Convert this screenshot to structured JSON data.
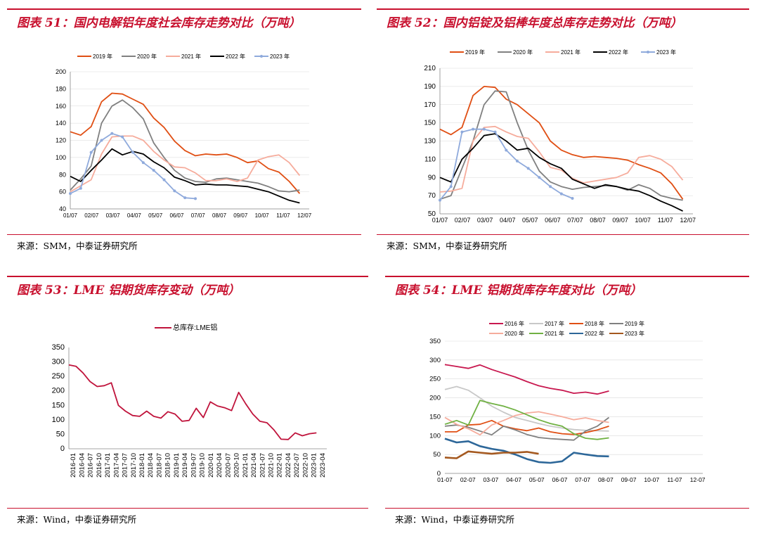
{
  "colors": {
    "accent": "#c8102e",
    "y2016": "#c8184f",
    "y2017": "#c8c8c8",
    "y2018": "#e04f14",
    "y2019": "#808080",
    "y2020": "#f6ac9c",
    "y2021": "#70b143",
    "y2022": "#2d6799",
    "y2022_black": "#000000",
    "y2023": "#8faadc",
    "y2023_brown": "#a4581e",
    "lme": "#c0143c"
  },
  "panels": [
    {
      "title": "图表 51：国内电解铝年度社会库存走势对比（万吨）",
      "source": "来源：SMM，中泰证券研究所"
    },
    {
      "title": "图表 52：国内铝锭及铝棒年度总库存走势对比（万吨）",
      "source": "来源：SMM，中泰证券研究所"
    },
    {
      "title": "图表 53：LME 铝期货库存变动（万吨）",
      "source": "来源：Wind，中泰证券研究所"
    },
    {
      "title": "图表 54：LME 铝期货库存年度对比（万吨）",
      "source": "来源：Wind，中泰证券研究所"
    }
  ],
  "chart_data": [
    {
      "type": "line",
      "ylim": [
        40,
        200
      ],
      "yticks": [
        "40",
        "60",
        "80",
        "100",
        "120",
        "140",
        "160",
        "180",
        "200"
      ],
      "xticks": [
        "01/07",
        "02/07",
        "03/07",
        "04/07",
        "05/07",
        "06/07",
        "07/07",
        "08/07",
        "09/07",
        "10/07",
        "11/07",
        "12/07"
      ],
      "legend": [
        "2019 年",
        "2020 年",
        "2021 年",
        "2022 年",
        "2023 年"
      ],
      "series": [
        {
          "name": "2019 年",
          "color": "#e04f14",
          "values": [
            130,
            126,
            136,
            165,
            175,
            174,
            168,
            162,
            146,
            135,
            119,
            108,
            102,
            104,
            103,
            104,
            100,
            94,
            96,
            87,
            83,
            72,
            58
          ]
        },
        {
          "name": "2020 年",
          "color": "#808080",
          "values": [
            62,
            75,
            90,
            140,
            160,
            167,
            158,
            145,
            117,
            100,
            85,
            76,
            72,
            71,
            75,
            76,
            74,
            72,
            70,
            66,
            61,
            60,
            62
          ]
        },
        {
          "name": "2021 年",
          "color": "#f6ac9c",
          "values": [
            60,
            67,
            74,
            104,
            124,
            125,
            125,
            120,
            107,
            97,
            89,
            88,
            82,
            73,
            73,
            75,
            72,
            76,
            97,
            101,
            103,
            94,
            79
          ]
        },
        {
          "name": "2022 年",
          "color": "#000000",
          "values": [
            78,
            72,
            85,
            97,
            110,
            103,
            107,
            104,
            95,
            88,
            77,
            73,
            68,
            69,
            68,
            68,
            67,
            66,
            63,
            60,
            55,
            50,
            47
          ]
        },
        {
          "name": "2023 年",
          "color": "#8faadc",
          "values": [
            58,
            64,
            106,
            120,
            128,
            124,
            106,
            94,
            85,
            74,
            61,
            53,
            52
          ]
        }
      ]
    },
    {
      "type": "line",
      "ylim": [
        50,
        210
      ],
      "yticks": [
        "50",
        "70",
        "90",
        "110",
        "130",
        "150",
        "170",
        "190",
        "210"
      ],
      "xticks": [
        "01/07",
        "02/07",
        "03/07",
        "04/07",
        "05/07",
        "06/07",
        "07/07",
        "08/07",
        "09/07",
        "10/07",
        "11/07",
        "12/07"
      ],
      "legend": [
        "2019 年",
        "2020 年",
        "2021 年",
        "2022 年",
        "2023 年"
      ],
      "series": [
        {
          "name": "2019 年",
          "color": "#e04f14",
          "values": [
            143,
            137,
            145,
            180,
            190,
            189,
            176,
            170,
            160,
            150,
            130,
            120,
            115,
            112,
            113,
            112,
            111,
            109,
            104,
            100,
            95,
            83,
            66
          ]
        },
        {
          "name": "2020 年",
          "color": "#808080",
          "values": [
            66,
            70,
            100,
            130,
            170,
            185,
            184,
            150,
            120,
            97,
            85,
            80,
            77,
            79,
            80,
            81,
            80,
            76,
            82,
            78,
            70,
            67,
            65
          ]
        },
        {
          "name": "2021 年",
          "color": "#f6ac9c",
          "values": [
            74,
            75,
            78,
            130,
            145,
            146,
            140,
            135,
            133,
            118,
            101,
            98,
            89,
            84,
            86,
            88,
            90,
            95,
            112,
            114,
            110,
            102,
            87
          ]
        },
        {
          "name": "2022 年",
          "color": "#000000",
          "values": [
            90,
            85,
            110,
            122,
            136,
            138,
            130,
            120,
            122,
            112,
            105,
            100,
            88,
            83,
            78,
            82,
            80,
            77,
            75,
            70,
            64,
            59,
            53
          ]
        },
        {
          "name": "2023 年",
          "color": "#8faadc",
          "values": [
            65,
            80,
            140,
            143,
            143,
            140,
            120,
            108,
            100,
            90,
            80,
            72,
            67
          ]
        }
      ]
    },
    {
      "type": "line",
      "ylim": [
        0,
        350
      ],
      "yticks": [
        "0",
        "50",
        "100",
        "150",
        "200",
        "250",
        "300",
        "350"
      ],
      "xticks": [
        "2016-01",
        "2016-04",
        "2016-07",
        "2016-10",
        "2017-01",
        "2017-04",
        "2017-07",
        "2017-10",
        "2018-01",
        "2018-04",
        "2018-07",
        "2018-10",
        "2019-01",
        "2019-04",
        "2019-07",
        "2019-10",
        "2020-01",
        "2020-04",
        "2020-07",
        "2020-10",
        "2021-01",
        "2021-04",
        "2021-07",
        "2021-10",
        "2022-01",
        "2022-04",
        "2022-07",
        "2022-10",
        "2023-01",
        "2023-04"
      ],
      "legend": [
        "总库存:LME铝"
      ],
      "series": [
        {
          "name": "总库存:LME铝",
          "color": "#c0143c",
          "values": [
            290,
            285,
            262,
            232,
            215,
            218,
            228,
            150,
            130,
            115,
            112,
            130,
            112,
            106,
            128,
            120,
            95,
            98,
            140,
            108,
            162,
            148,
            142,
            132,
            195,
            155,
            120,
            95,
            90,
            65,
            33,
            32,
            55,
            45,
            52,
            55
          ]
        }
      ]
    },
    {
      "type": "line",
      "ylim": [
        0,
        350
      ],
      "yticks": [
        "0",
        "50",
        "100",
        "150",
        "200",
        "250",
        "300",
        "350"
      ],
      "xticks": [
        "01-07",
        "02-07",
        "03-07",
        "04-07",
        "05-07",
        "06-07",
        "07-07",
        "08-07",
        "09-07",
        "10-07",
        "11-07",
        "12-07"
      ],
      "legend": [
        "2016 年",
        "2017 年",
        "2018 年",
        "2019 年",
        "2020 年",
        "2021 年",
        "2022 年",
        "2023 年"
      ],
      "series": [
        {
          "name": "2016 年",
          "color": "#c8184f",
          "values": [
            288,
            283,
            278,
            287,
            275,
            265,
            255,
            243,
            232,
            225,
            220,
            212,
            215,
            210,
            218
          ]
        },
        {
          "name": "2017 年",
          "color": "#c8c8c8",
          "values": [
            222,
            230,
            220,
            200,
            178,
            162,
            148,
            140,
            132,
            125,
            120,
            116,
            114,
            113,
            112
          ]
        },
        {
          "name": "2018 年",
          "color": "#e04f14",
          "values": [
            110,
            110,
            128,
            130,
            140,
            125,
            118,
            113,
            120,
            110,
            105,
            103,
            108,
            115,
            125
          ]
        },
        {
          "name": "2019 年",
          "color": "#808080",
          "values": [
            125,
            128,
            122,
            112,
            102,
            125,
            115,
            103,
            95,
            92,
            90,
            88,
            112,
            125,
            148
          ]
        },
        {
          "name": "2020 年",
          "color": "#f6ac9c",
          "values": [
            148,
            130,
            118,
            102,
            128,
            140,
            153,
            160,
            163,
            157,
            150,
            142,
            147,
            140,
            135
          ]
        },
        {
          "name": "2021 年",
          "color": "#70b143",
          "values": [
            130,
            140,
            128,
            193,
            185,
            178,
            168,
            155,
            142,
            132,
            125,
            105,
            93,
            90,
            94
          ]
        },
        {
          "name": "2022 年",
          "color": "#2d6799",
          "values": [
            92,
            82,
            85,
            72,
            65,
            60,
            50,
            38,
            30,
            28,
            32,
            55,
            50,
            46,
            45
          ]
        },
        {
          "name": "2023 年",
          "color": "#a4581e",
          "values": [
            42,
            40,
            58,
            55,
            52,
            55,
            55,
            57,
            52
          ]
        }
      ]
    }
  ]
}
